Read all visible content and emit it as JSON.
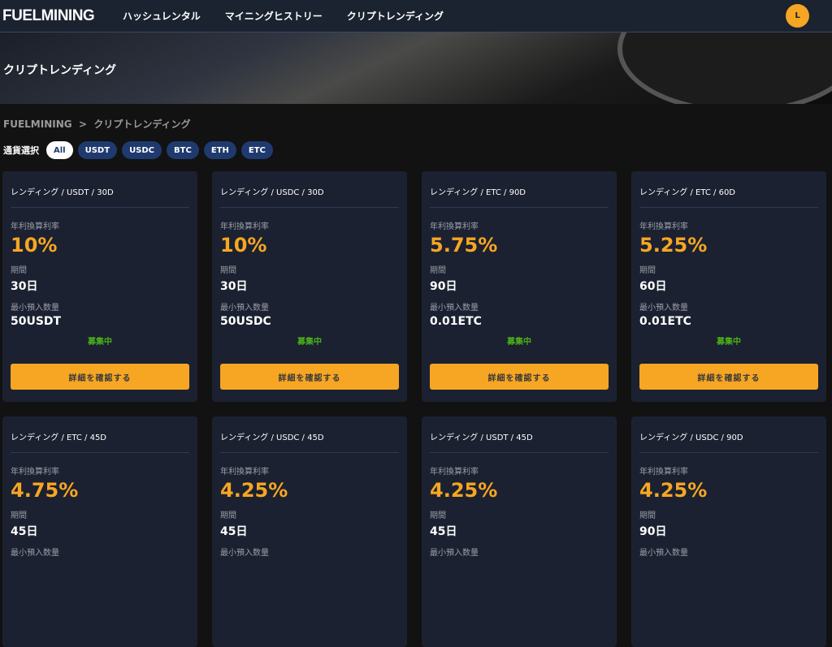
{
  "header": {
    "logo": "FUELMINING",
    "nav": [
      "ハッシュレンタル",
      "マイニングヒストリー",
      "クリプトレンディング"
    ],
    "avatar": "L"
  },
  "hero": {
    "title": "クリプトレンディング"
  },
  "breadcrumb": "FUELMINING  >  クリプトレンディング",
  "filter": {
    "label": "通貨選択",
    "chips": [
      "All",
      "USDT",
      "USDC",
      "BTC",
      "ETH",
      "ETC"
    ],
    "active": "All"
  },
  "labels": {
    "rate": "年利換算利率",
    "period": "期間",
    "min": "最小預入数量",
    "button": "詳細を確認する"
  },
  "colors": {
    "accent": "#f6a623",
    "status": "#4caf1a",
    "chip": "#1f3a6e"
  },
  "cards": [
    {
      "title": "レンディング / USDT / 30D",
      "rate": "10%",
      "period": "30日",
      "min": "50USDT",
      "status": "募集中"
    },
    {
      "title": "レンディング / USDC / 30D",
      "rate": "10%",
      "period": "30日",
      "min": "50USDC",
      "status": "募集中"
    },
    {
      "title": "レンディング / ETC / 90D",
      "rate": "5.75%",
      "period": "90日",
      "min": "0.01ETC",
      "status": "募集中"
    },
    {
      "title": "レンディング / ETC / 60D",
      "rate": "5.25%",
      "period": "60日",
      "min": "0.01ETC",
      "status": "募集中"
    },
    {
      "title": "レンディング / ETC / 45D",
      "rate": "4.75%",
      "period": "45日"
    },
    {
      "title": "レンディング / USDC / 45D",
      "rate": "4.25%",
      "period": "45日"
    },
    {
      "title": "レンディング / USDT / 45D",
      "rate": "4.25%",
      "period": "45日"
    },
    {
      "title": "レンディング / USDC / 90D",
      "rate": "4.25%",
      "period": "90日"
    }
  ]
}
